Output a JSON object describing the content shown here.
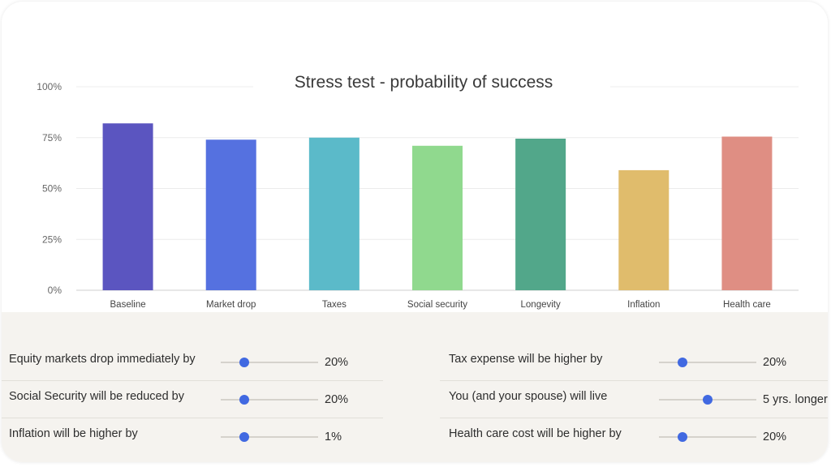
{
  "chart_data": {
    "type": "bar",
    "title": "Stress test - probability of success",
    "categories": [
      "Baseline",
      "Market drop",
      "Taxes",
      "Social security",
      "Longevity",
      "Inflation",
      "Health care"
    ],
    "values": [
      82,
      74,
      75,
      71,
      74.5,
      59,
      75.5
    ],
    "colors": [
      "#5b55c0",
      "#5571e0",
      "#5bbac9",
      "#90d98e",
      "#52a78a",
      "#e0bc6c",
      "#df8e83"
    ],
    "y_ticks": [
      "0%",
      "25%",
      "50%",
      "75%",
      "100%"
    ],
    "ylim": [
      0,
      100
    ],
    "grid": true,
    "xlabel": "",
    "ylabel": ""
  },
  "controls": {
    "equity": {
      "label": "Equity markets drop immediately by",
      "value": "20%",
      "slider_fraction": 0.24
    },
    "tax": {
      "label": "Tax expense will be higher by",
      "value": "20%",
      "slider_fraction": 0.24
    },
    "social_security": {
      "label": "Social Security will be reduced by",
      "value": "20%",
      "slider_fraction": 0.24
    },
    "longevity": {
      "label": "You (and your spouse) will live",
      "value": "5 yrs. longer",
      "slider_fraction": 0.5
    },
    "inflation": {
      "label": "Inflation will be higher by",
      "value": "1%",
      "slider_fraction": 0.24
    },
    "health_care": {
      "label": "Health care cost will be higher by",
      "value": "20%",
      "slider_fraction": 0.24
    }
  },
  "colors": {
    "slider_thumb": "#4169e1",
    "controls_background": "#f5f3ef"
  }
}
